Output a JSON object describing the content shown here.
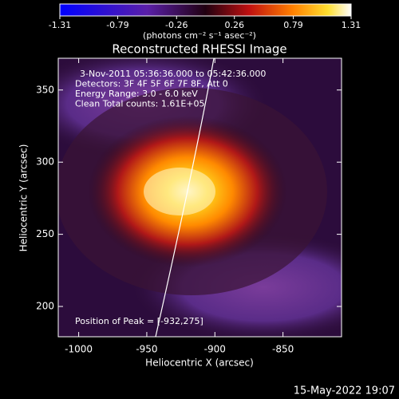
{
  "chart_data": {
    "type": "image",
    "title": "Reconstructed RHESSI Image",
    "annotations": [
      "3-Nov-2011 05:36:36.000 to 05:42:36.000",
      "Detectors: 3F 4F 5F 6F 7F 8F, Att 0",
      "Energy Range: 3.0 - 6.0 keV",
      "Clean    Total counts: 1.61E+05"
    ],
    "peak_label": "Position of Peak = [-932,275]",
    "x_label": "Heliocentric X (arcsec)",
    "y_label": "Heliocentric Y (arcsec)",
    "xlim": [
      -1015,
      -807
    ],
    "xticks": [
      -1000,
      -950,
      -900,
      -850
    ],
    "ylim": [
      179,
      372
    ],
    "yticks": [
      200,
      250,
      300,
      350
    ],
    "colorbar": {
      "label": "(photons cm⁻² s⁻¹ asec⁻²)",
      "clim": [
        -1.31,
        1.31
      ],
      "ticks": [
        -1.31,
        -0.79,
        -0.26,
        0.26,
        0.79,
        1.31
      ]
    },
    "timestamp": "15-May-2022 19:07"
  }
}
